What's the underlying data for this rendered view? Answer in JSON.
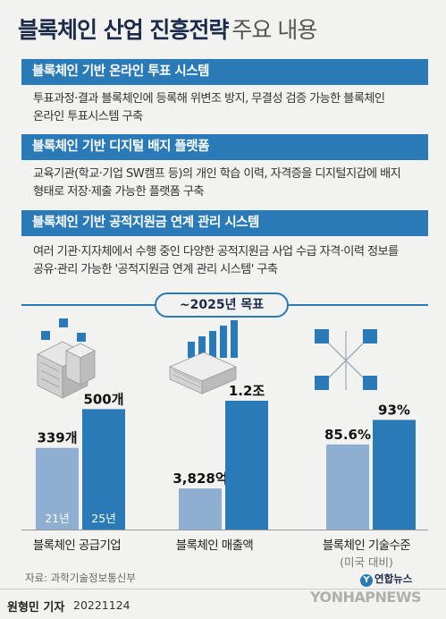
{
  "header": {
    "title": "블록체인 산업 진흥전략",
    "subtitle": "주요 내용"
  },
  "sections": [
    {
      "heading": "블록체인 기반 온라인 투표 시스템",
      "lines": [
        "투표과정·결과 블록체인에 등록해 위변조 방지, 무결성 검증 가능한 블록체인",
        "온라인 투표시스템 구축"
      ]
    },
    {
      "heading": "블록체인 기반 디지털 배지 플랫폼",
      "lines": [
        "교육기관(학교·기업 SW캠프 등)의 개인 학습 이력, 자격증을 디지털지갑에 배지",
        "형태로 저장·제출 가능한 플랫폼 구축"
      ]
    },
    {
      "heading": "블록체인 기반 공적지원금 연계 관리 시스템",
      "lines": [
        "여러 기관·지자체에서 수행 중인 다양한 공적지원금 사업 수급 자격·이력 정보를",
        "공유·관리 가능한 '공적지원금 연계 관리 시스템' 구축"
      ]
    }
  ],
  "goal_badge": "~2025년 목표",
  "chart_data": [
    {
      "type": "bar",
      "title": "블록체인 공급기업",
      "categories": [
        "21년",
        "25년"
      ],
      "values": [
        339,
        500
      ],
      "value_labels": [
        "339개",
        "500개"
      ],
      "unit": "개"
    },
    {
      "type": "bar",
      "title": "블록체인 매출액",
      "categories": [
        "21년",
        "25년"
      ],
      "values": [
        3828,
        12000
      ],
      "value_labels": [
        "3,828억",
        "1.2조"
      ],
      "unit": "억"
    },
    {
      "type": "bar",
      "title": "블록체인 기술수준",
      "subtitle": "(미국 대비)",
      "categories": [
        "21년",
        "25년"
      ],
      "values": [
        85.6,
        93
      ],
      "value_labels": [
        "85.6%",
        "93%"
      ],
      "unit": "%"
    }
  ],
  "colors": {
    "bar_2021": "#8eaed2",
    "bar_2025": "#2a7ab8",
    "header_blue": "#2a7ab8",
    "title_navy": "#1d2b4a"
  },
  "icons": [
    "buildings-icon",
    "bar-growth-icon",
    "network-cubes-icon"
  ],
  "footer": {
    "source": "자료: 과학기술정보통신부",
    "reporter": "원형민 기자",
    "date": "20221124",
    "logo_text": "연합뉴스",
    "logo_glyph": "Y",
    "watermark": "YONHAPNEWS"
  }
}
